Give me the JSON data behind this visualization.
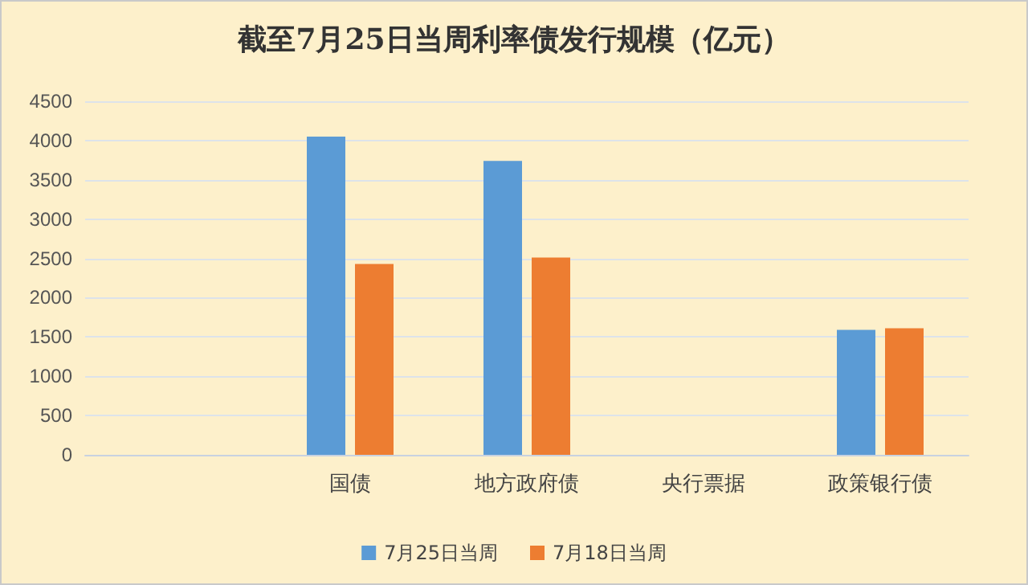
{
  "chart_data": {
    "type": "bar",
    "title": "截至7月25日当周利率债发行规模（亿元）",
    "categories": [
      null,
      "国债",
      "地方政府债",
      "央行票据",
      "政策银行债"
    ],
    "series": [
      {
        "name": "7月25日当周",
        "color": "#5b9bd5",
        "values": [
          null,
          4050,
          3740,
          null,
          1590
        ]
      },
      {
        "name": "7月18日当周",
        "color": "#ed7d31",
        "values": [
          null,
          2430,
          2510,
          null,
          1610
        ]
      }
    ],
    "ylim": [
      0,
      4500
    ],
    "yticks": [
      0,
      500,
      1000,
      1500,
      2000,
      2500,
      3000,
      3500,
      4000,
      4500
    ],
    "grid": "y",
    "legend": "bottom"
  }
}
